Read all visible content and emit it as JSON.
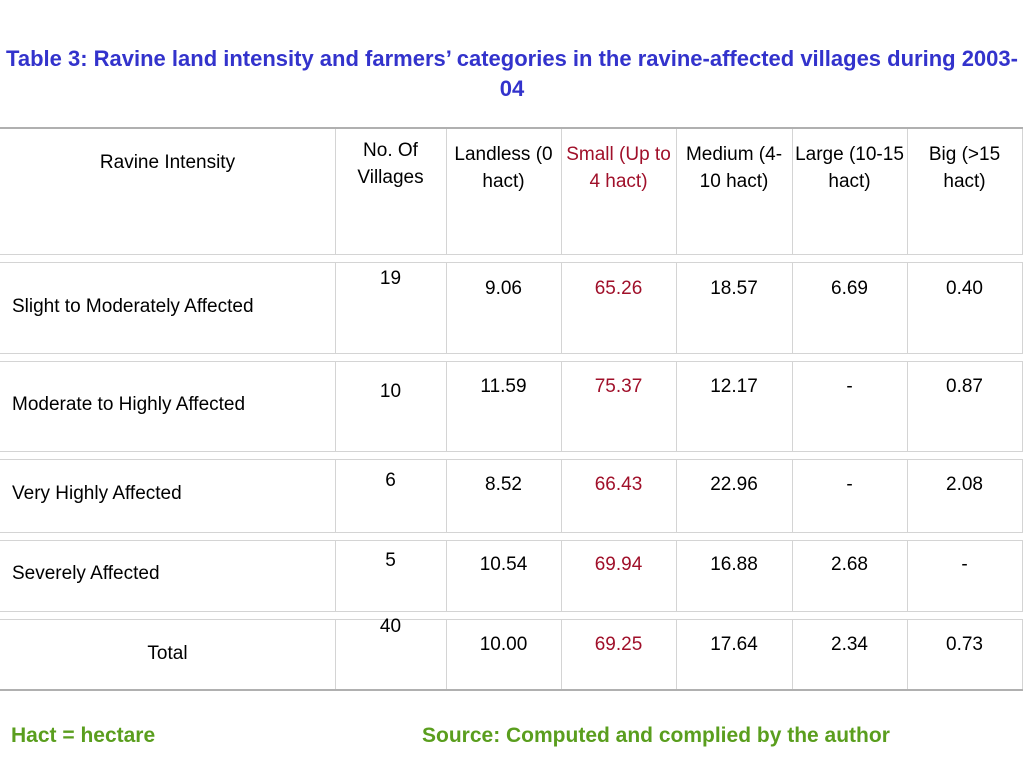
{
  "title": "Table 3: Ravine land intensity and farmers’ categories in the ravine-affected villages during 2003-04",
  "header": {
    "c0": "Ravine Intensity",
    "c1": "No. Of Villages",
    "c2": "Landless (0 hact)",
    "c3": "Small (Up to 4 hact)",
    "c4": "Medium (4-10 hact)",
    "c5": "Large (10-15 hact)",
    "c6": "Big (>15 hact)"
  },
  "rows": [
    {
      "intensity": "Slight to Moderately Affected",
      "villages": "19",
      "landless": "9.06",
      "small": "65.26",
      "medium": "18.57",
      "large": "6.69",
      "big": "0.40"
    },
    {
      "intensity": "Moderate to Highly Affected",
      "villages": "10",
      "landless": "11.59",
      "small": "75.37",
      "medium": "12.17",
      "large": "-",
      "big": "0.87"
    },
    {
      "intensity": "Very Highly Affected",
      "villages": "6",
      "landless": "8.52",
      "small": "66.43",
      "medium": "22.96",
      "large": "-",
      "big": "2.08"
    },
    {
      "intensity": "Severely Affected",
      "villages": "5",
      "landless": "10.54",
      "small": "69.94",
      "medium": "16.88",
      "large": "2.68",
      "big": "-"
    },
    {
      "intensity": "Total",
      "villages": "40",
      "landless": "10.00",
      "small": "69.25",
      "medium": "17.64",
      "large": "2.34",
      "big": "0.73"
    }
  ],
  "footer": {
    "left": "Hact = hectare",
    "right": "Source: Computed and complied by the author"
  },
  "colors": {
    "title": "#3333cc",
    "small_column": "#a0102a",
    "footer": "#5a9e1e",
    "grid": "#d4d4d4"
  }
}
